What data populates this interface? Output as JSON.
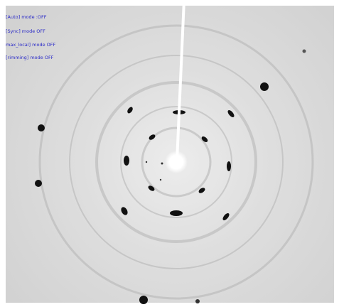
{
  "overlay": {
    "lines": [
      "[Auto] mode :OFF",
      "[Sync] mode OFF",
      "max_local] mode OFF",
      "[rimming] mode OFF"
    ]
  }
}
